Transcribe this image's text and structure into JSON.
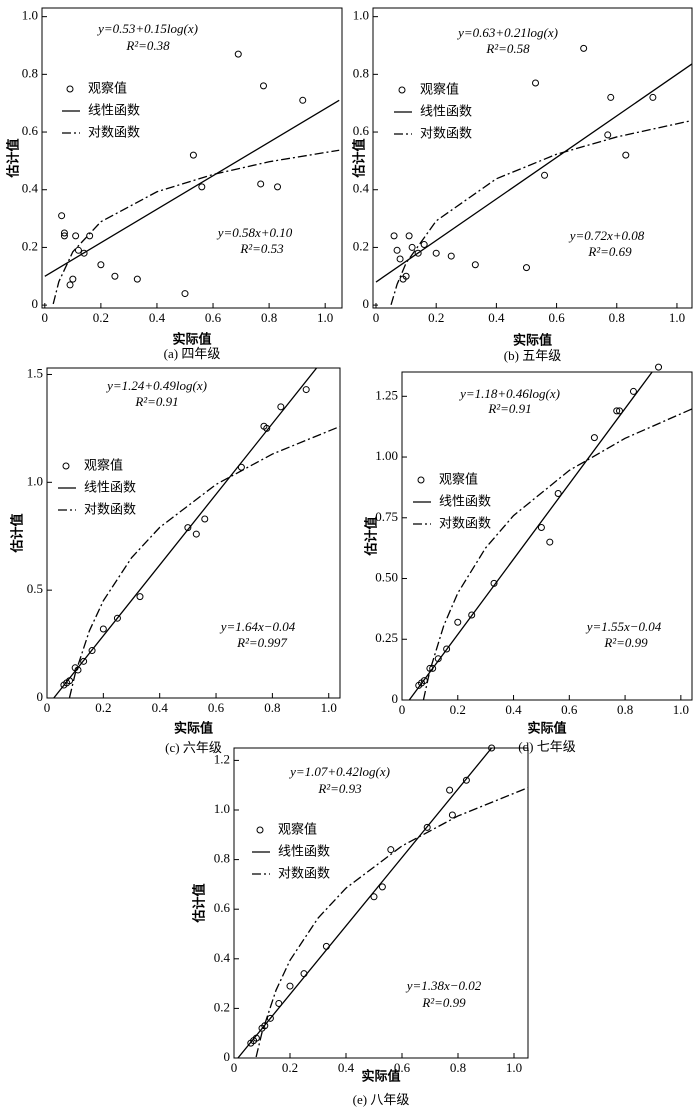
{
  "chart_data": [
    {
      "type": "scatter",
      "caption": "(a) 四年级",
      "xlabel": "实际值",
      "ylabel": "估计值",
      "xlim": [
        -0.01,
        1.06
      ],
      "ylim": [
        -0.01,
        1.03
      ],
      "xticks": [
        0,
        0.2,
        0.4,
        0.6,
        0.8,
        {
          "value": 1,
          "label": "1.0"
        }
      ],
      "yticks": [
        0,
        0.2,
        0.4,
        0.6,
        0.8,
        {
          "value": 1,
          "label": "1.0"
        }
      ],
      "annotations": [
        "y=0.53+0.15log(x)",
        "R²=0.38",
        "y=0.58x+0.10",
        "R²=0.53"
      ],
      "series": [
        {
          "name": "观察值",
          "style": "circle",
          "color": "#000",
          "x": [
            0.06,
            0.07,
            0.07,
            0.09,
            0.1,
            0.11,
            0.12,
            0.14,
            0.16,
            0.2,
            0.25,
            0.33,
            0.5,
            0.53,
            0.56,
            0.69,
            0.77,
            0.78,
            0.83,
            0.92
          ],
          "values": [
            0.31,
            0.24,
            0.25,
            0.07,
            0.09,
            0.24,
            0.19,
            0.18,
            0.24,
            0.14,
            0.1,
            0.09,
            0.04,
            0.52,
            0.41,
            0.87,
            0.42,
            0.76,
            0.41,
            0.71
          ]
        },
        {
          "name": "线性函数",
          "style": "solid",
          "color": "#000",
          "x": [
            0,
            1.05
          ],
          "values": [
            0.1,
            0.71
          ]
        },
        {
          "name": "对数函数",
          "style": "dash-dot",
          "color": "#000",
          "x": [
            0.03,
            0.05,
            0.1,
            0.2,
            0.4,
            0.6,
            0.8,
            1.05
          ],
          "values": [
            0.004,
            0.081,
            0.185,
            0.289,
            0.393,
            0.453,
            0.497,
            0.537
          ]
        }
      ]
    },
    {
      "type": "scatter",
      "caption": "(b) 五年级",
      "xlabel": "实际值",
      "ylabel": "估计值",
      "xlim": [
        -0.01,
        1.05
      ],
      "ylim": [
        -0.01,
        1.03
      ],
      "xticks": [
        0,
        0.2,
        0.4,
        0.6,
        0.8,
        {
          "value": 1,
          "label": "1.0"
        }
      ],
      "yticks": [
        0,
        0.2,
        0.4,
        0.6,
        0.8,
        {
          "value": 1,
          "label": "1.0"
        }
      ],
      "annotations": [
        "y=0.63+0.21log(x)",
        "R²=0.58",
        "y=0.72x+0.08",
        "R²=0.69"
      ],
      "series": [
        {
          "name": "观察值",
          "style": "circle",
          "color": "#000",
          "x": [
            0.06,
            0.07,
            0.08,
            0.09,
            0.1,
            0.11,
            0.12,
            0.14,
            0.16,
            0.2,
            0.25,
            0.33,
            0.5,
            0.53,
            0.56,
            0.69,
            0.77,
            0.78,
            0.83,
            0.92
          ],
          "values": [
            0.24,
            0.19,
            0.16,
            0.09,
            0.1,
            0.24,
            0.2,
            0.18,
            0.21,
            0.18,
            0.17,
            0.14,
            0.13,
            0.77,
            0.45,
            0.89,
            0.59,
            0.72,
            0.52,
            0.72
          ]
        },
        {
          "name": "线性函数",
          "style": "solid",
          "color": "#000",
          "x": [
            0,
            1.05
          ],
          "values": [
            0.08,
            0.836
          ]
        },
        {
          "name": "对数函数",
          "style": "dash-dot",
          "color": "#000",
          "x": [
            0.05,
            0.07,
            0.1,
            0.2,
            0.4,
            0.6,
            0.8,
            1.05
          ],
          "values": [
            0.001,
            0.072,
            0.146,
            0.292,
            0.438,
            0.523,
            0.583,
            0.64
          ]
        }
      ]
    },
    {
      "type": "scatter",
      "caption": "(c) 六年级",
      "xlabel": "实际值",
      "ylabel": "估计值",
      "xlim": [
        0,
        1.04
      ],
      "ylim": [
        0,
        1.53
      ],
      "xticks": [
        0,
        0.2,
        0.4,
        0.6,
        0.8,
        {
          "value": 1,
          "label": "1.0"
        }
      ],
      "yticks": [
        0,
        0.5,
        {
          "value": 1,
          "label": "1.0"
        },
        1.5
      ],
      "annotations": [
        "y=1.24+0.49log(x)",
        "R²=0.91",
        "y=1.64x−0.04",
        "R²=0.997"
      ],
      "series": [
        {
          "name": "观察值",
          "style": "circle",
          "color": "#000",
          "x": [
            0.06,
            0.07,
            0.08,
            0.1,
            0.11,
            0.13,
            0.16,
            0.2,
            0.25,
            0.33,
            0.5,
            0.53,
            0.56,
            0.69,
            0.77,
            0.78,
            0.83,
            0.92
          ],
          "values": [
            0.06,
            0.07,
            0.08,
            0.14,
            0.13,
            0.17,
            0.22,
            0.32,
            0.37,
            0.47,
            0.79,
            0.76,
            0.83,
            1.07,
            1.26,
            1.25,
            1.35,
            1.43
          ]
        },
        {
          "name": "线性函数",
          "style": "solid",
          "color": "#000",
          "x": [
            0.024,
            0.957
          ],
          "values": [
            0,
            1.53
          ]
        },
        {
          "name": "对数函数",
          "style": "dash-dot",
          "color": "#000",
          "x": [
            0.08,
            0.1,
            0.15,
            0.2,
            0.3,
            0.4,
            0.6,
            0.8,
            1.04
          ],
          "values": [
            0.002,
            0.112,
            0.31,
            0.451,
            0.65,
            0.791,
            0.99,
            1.131,
            1.259
          ]
        }
      ]
    },
    {
      "type": "scatter",
      "caption": "(d) 七年级",
      "xlabel": "实际值",
      "ylabel": "估计值",
      "xlim": [
        0,
        1.04
      ],
      "ylim": [
        0,
        1.35
      ],
      "xticks": [
        0,
        0.2,
        0.4,
        0.6,
        0.8,
        {
          "value": 1,
          "label": "1.0"
        }
      ],
      "yticks": [
        0,
        0.25,
        {
          "value": 0.5,
          "label": "0.50"
        },
        0.75,
        {
          "value": 1,
          "label": "1.00"
        },
        1.25
      ],
      "annotations": [
        "y=1.18+0.46log(x)",
        "R²=0.91",
        "y=1.55x−0.04",
        "R²=0.99"
      ],
      "series": [
        {
          "name": "观察值",
          "style": "circle",
          "color": "#000",
          "x": [
            0.06,
            0.07,
            0.08,
            0.1,
            0.11,
            0.13,
            0.16,
            0.2,
            0.25,
            0.33,
            0.5,
            0.53,
            0.56,
            0.69,
            0.77,
            0.78,
            0.83,
            0.92
          ],
          "values": [
            0.06,
            0.07,
            0.08,
            0.13,
            0.13,
            0.17,
            0.21,
            0.32,
            0.35,
            0.48,
            0.71,
            0.65,
            0.85,
            1.08,
            1.19,
            1.19,
            1.27,
            1.37
          ]
        },
        {
          "name": "线性函数",
          "style": "solid",
          "color": "#000",
          "x": [
            0.026,
            0.897
          ],
          "values": [
            0,
            1.35
          ]
        },
        {
          "name": "对数函数",
          "style": "dash-dot",
          "color": "#000",
          "x": [
            0.077,
            0.1,
            0.15,
            0.2,
            0.3,
            0.4,
            0.6,
            0.8,
            1.04
          ],
          "values": [
            0.001,
            0.121,
            0.307,
            0.44,
            0.626,
            0.759,
            0.945,
            1.077,
            1.198
          ]
        }
      ]
    },
    {
      "type": "scatter",
      "caption": "(e) 八年级",
      "xlabel": "实际值",
      "ylabel": "估计值",
      "xlim": [
        0,
        1.05
      ],
      "ylim": [
        0,
        1.25
      ],
      "xticks": [
        0,
        0.2,
        0.4,
        0.6,
        0.8,
        {
          "value": 1,
          "label": "1.0"
        }
      ],
      "yticks": [
        0,
        0.2,
        0.4,
        0.6,
        0.8,
        {
          "value": 1,
          "label": "1.0"
        },
        1.2
      ],
      "annotations": [
        "y=1.07+0.42log(x)",
        "R²=0.93",
        "y=1.38x−0.02",
        "R²=0.99"
      ],
      "series": [
        {
          "name": "观察值",
          "style": "circle",
          "color": "#000",
          "x": [
            0.06,
            0.07,
            0.08,
            0.1,
            0.11,
            0.13,
            0.16,
            0.2,
            0.25,
            0.33,
            0.5,
            0.53,
            0.56,
            0.69,
            0.78,
            0.77,
            0.83,
            0.92
          ],
          "values": [
            0.06,
            0.07,
            0.08,
            0.12,
            0.13,
            0.16,
            0.22,
            0.29,
            0.34,
            0.45,
            0.65,
            0.69,
            0.84,
            0.93,
            0.98,
            1.08,
            1.12,
            1.25
          ]
        },
        {
          "name": "线性函数",
          "style": "solid",
          "color": "#000",
          "x": [
            0.014,
            0.92
          ],
          "values": [
            0,
            1.25
          ]
        },
        {
          "name": "对数函数",
          "style": "dash-dot",
          "color": "#000",
          "x": [
            0.079,
            0.1,
            0.15,
            0.2,
            0.3,
            0.4,
            0.6,
            0.8,
            1.05
          ],
          "values": [
            0.004,
            0.103,
            0.273,
            0.394,
            0.564,
            0.685,
            0.855,
            0.976,
            1.09
          ]
        }
      ]
    }
  ]
}
